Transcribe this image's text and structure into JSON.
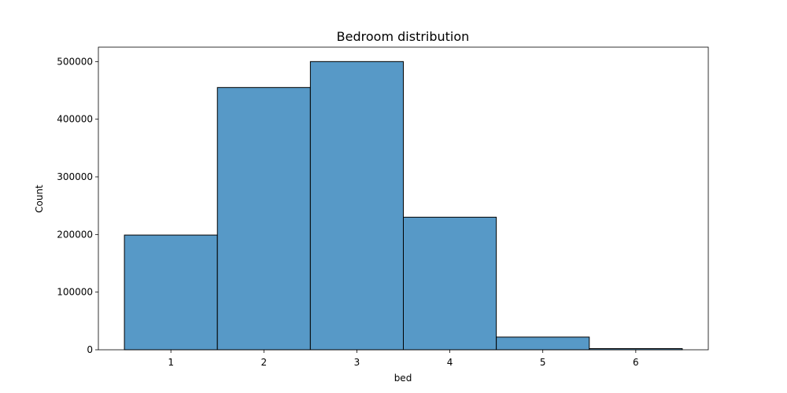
{
  "chart_data": {
    "type": "bar",
    "title": "Bedroom distribution",
    "xlabel": "bed",
    "ylabel": "Count",
    "categories": [
      "1",
      "2",
      "3",
      "4",
      "5",
      "6"
    ],
    "x": [
      1,
      2,
      3,
      4,
      5,
      6
    ],
    "values": [
      199000,
      455000,
      500000,
      230000,
      22000,
      2000
    ],
    "xlim": [
      0.22,
      6.78
    ],
    "ylim": [
      0,
      525000
    ],
    "yticks": [
      0,
      100000,
      200000,
      300000,
      400000,
      500000
    ],
    "ytick_labels": [
      "0",
      "100000",
      "200000",
      "300000",
      "400000",
      "500000"
    ],
    "grid": false,
    "colors": {
      "bar_fill": "#5799c7",
      "bar_edge": "#000000"
    }
  }
}
